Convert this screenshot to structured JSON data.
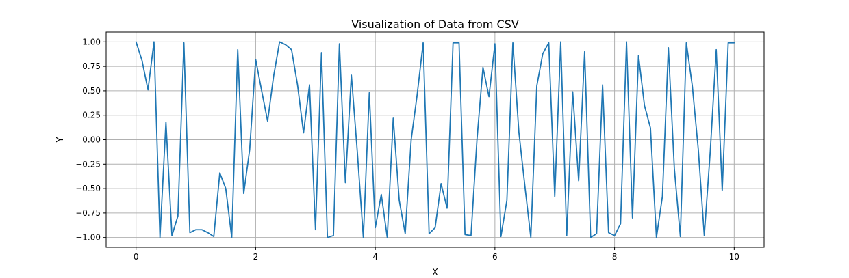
{
  "chart_data": {
    "type": "line",
    "title": "Visualization of Data from CSV",
    "xlabel": "X",
    "ylabel": "Y",
    "xlim": [
      -0.5,
      10.5
    ],
    "ylim": [
      -1.1,
      1.1
    ],
    "xticks": [
      0,
      2,
      4,
      6,
      8,
      10
    ],
    "xtick_labels": [
      "0",
      "2",
      "4",
      "6",
      "8",
      "10"
    ],
    "yticks": [
      -1.0,
      -0.75,
      -0.5,
      -0.25,
      0.0,
      0.25,
      0.5,
      0.75,
      1.0
    ],
    "ytick_labels": [
      "−1.00",
      "−0.75",
      "−0.50",
      "−0.25",
      "0.00",
      "0.25",
      "0.50",
      "0.75",
      "1.00"
    ],
    "grid": true,
    "series": [
      {
        "color": "#1f77b4",
        "x": [
          0,
          0.1,
          0.2,
          0.3,
          0.4,
          0.5,
          0.6,
          0.7,
          0.8,
          0.9,
          1.0,
          1.1,
          1.2,
          1.3,
          1.4,
          1.5,
          1.6,
          1.7,
          1.8,
          1.9,
          2.0,
          2.1,
          2.2,
          2.3,
          2.4,
          2.5,
          2.6,
          2.7,
          2.8,
          2.9,
          3.0,
          3.1,
          3.2,
          3.3,
          3.4,
          3.5,
          3.6,
          3.7,
          3.8,
          3.9,
          4.0,
          4.1,
          4.2,
          4.3,
          4.4,
          4.5,
          4.6,
          4.7,
          4.8,
          4.9,
          5.0,
          5.1,
          5.2,
          5.3,
          5.4,
          5.5,
          5.6,
          5.7,
          5.8,
          5.9,
          6.0,
          6.1,
          6.2,
          6.3,
          6.4,
          6.5,
          6.6,
          6.7,
          6.8,
          6.9,
          7.0,
          7.1,
          7.2,
          7.3,
          7.4,
          7.5,
          7.6,
          7.7,
          7.8,
          7.9,
          8.0,
          8.1,
          8.2,
          8.3,
          8.4,
          8.5,
          8.6,
          8.7,
          8.8,
          8.9,
          9.0,
          9.1,
          9.2,
          9.3,
          9.4,
          9.5,
          9.6,
          9.7,
          9.8,
          9.9,
          10.0
        ],
        "y": [
          1.0,
          0.81,
          0.51,
          1.0,
          -1.0,
          0.18,
          -0.98,
          -0.78,
          0.99,
          -0.95,
          -0.92,
          -0.92,
          -0.95,
          -0.99,
          -0.34,
          -0.5,
          -1.0,
          0.92,
          -0.55,
          -0.1,
          0.82,
          0.5,
          0.19,
          0.65,
          1.0,
          0.97,
          0.92,
          0.56,
          0.07,
          0.56,
          -0.92,
          0.89,
          -1.0,
          -0.98,
          0.98,
          -0.44,
          0.66,
          -0.13,
          -1.0,
          0.48,
          -0.9,
          -0.56,
          -1.0,
          0.22,
          -0.62,
          -0.96,
          0.0,
          0.46,
          0.99,
          -0.96,
          -0.9,
          -0.45,
          -0.7,
          0.99,
          0.99,
          -0.97,
          -0.98,
          0.0,
          0.74,
          0.44,
          0.98,
          -0.99,
          -0.62,
          0.99,
          0.08,
          -0.47,
          -1.0,
          0.55,
          0.88,
          0.99,
          -0.58,
          1.0,
          -0.98,
          0.49,
          -0.42,
          0.9,
          -1.0,
          -0.96,
          0.56,
          -0.95,
          -0.98,
          -0.86,
          1.0,
          -0.8,
          0.86,
          0.35,
          0.12,
          -1.0,
          -0.58,
          0.94,
          -0.3,
          -0.99,
          0.99,
          0.55,
          -0.1,
          -0.98,
          -0.12,
          0.92,
          -0.52,
          0.99,
          0.99
        ]
      }
    ]
  }
}
